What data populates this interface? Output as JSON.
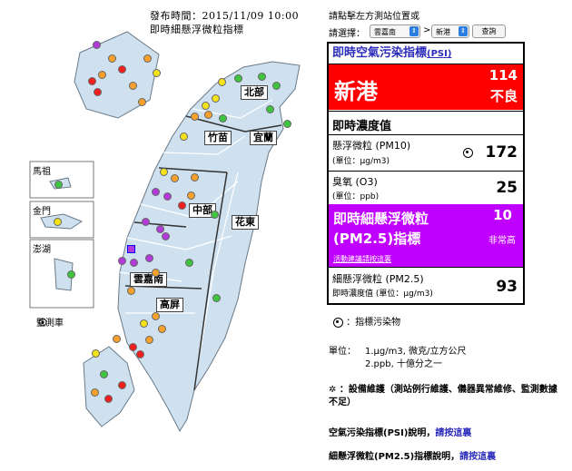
{
  "map": {
    "publish_time": "發布時間：2015/11/09 10:00",
    "subtitle": "即時細懸浮微粒指標",
    "regions": [
      "北部",
      "竹苗",
      "宜蘭",
      "中部",
      "花東",
      "雲嘉南",
      "高屏"
    ],
    "insets": [
      "馬祖",
      "金門",
      "澎湖"
    ],
    "legend_monitor": "監測車",
    "colors": {
      "green": "#3ec43e",
      "yellow": "#f5e21b",
      "orange": "#f7a02c",
      "red": "#f02020",
      "purple": "#b23ad9",
      "land": "#cfe1ef"
    }
  },
  "panel": {
    "instruction": "請點擊左方測站位置或",
    "select_label": "請選擇：",
    "county": "雲嘉南",
    "station": "新港",
    "query_button": "查詢",
    "psi_header": "即時空氣污染指標",
    "psi_abbr": "(PSI)",
    "station_name": "新港",
    "psi_value": "114",
    "psi_level": "不良",
    "conc_title": "即時濃度值",
    "pm10_label": "懸浮微粒 (PM10)",
    "pm10_unit": "(單位：µg/m3)",
    "pm10_value": "172",
    "o3_label": "臭氧 (O3)",
    "o3_unit": "(單位：ppb)",
    "o3_value": "25",
    "pm25_header1": "即時細懸浮微粒",
    "pm25_header2": "(PM2.5)指標",
    "pm25_index": "10",
    "pm25_level": "非常高",
    "activity_link": "活動建議請按這裏",
    "pm25_label": "細懸浮微粒 (PM2.5)",
    "pm25_unit": "即時濃度值 (單位：µg/m3)",
    "pm25_value": "93",
    "indicator_note": "：指標污染物",
    "unit_title": "單位：",
    "unit_1": "1.µg/m3, 微克/立方公尺",
    "unit_2": "2.ppb, 十億分之一",
    "maint_note": "：設備維護（測站例行維護、儀器異常維修、監測數據不足）",
    "psi_explain": "空氣污染指標(PSI)說明，",
    "pm25_explain": "細懸浮微粒(PM2.5)指標說明，",
    "click_here": "請按這裏"
  }
}
